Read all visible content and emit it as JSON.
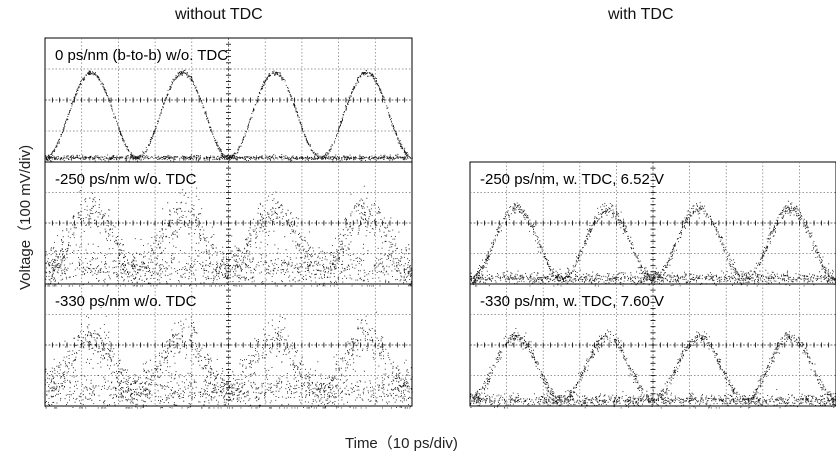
{
  "figure": {
    "column_titles": [
      "without TDC",
      "with TDC"
    ],
    "ylabel": "Voltage（100 mV/div)",
    "xlabel": "Time（10 ps/div)"
  },
  "chart_data": [
    {
      "type": "scatter",
      "title": "0 ps/nm (b-to-b)  w/o. TDC",
      "column": "without TDC",
      "xlabel": "Time (10 ps/div)",
      "ylabel": "Voltage (100 mV/div)",
      "divisions": {
        "x": 10,
        "y": 4
      },
      "signal": {
        "pulses": 4,
        "peak_div": 2.9,
        "base_div": 0.15,
        "noise": "low"
      }
    },
    {
      "type": "scatter",
      "title": "-250 ps/nm  w/o. TDC",
      "column": "without TDC",
      "xlabel": "Time (10 ps/div)",
      "ylabel": "Voltage (100 mV/div)",
      "divisions": {
        "x": 10,
        "y": 4
      },
      "signal": {
        "pulses": 4,
        "peak_div": 2.4,
        "base_div": 0.5,
        "noise": "high"
      }
    },
    {
      "type": "scatter",
      "title": "-330 ps/nm  w/o. TDC",
      "column": "without TDC",
      "xlabel": "Time (10 ps/div)",
      "ylabel": "Voltage (100 mV/div)",
      "divisions": {
        "x": 10,
        "y": 4
      },
      "signal": {
        "pulses": 4,
        "peak_div": 2.3,
        "base_div": 0.5,
        "noise": "high"
      }
    },
    {
      "type": "scatter",
      "title": "-250 ps/nm, w. TDC, 6.52 V",
      "column": "with TDC",
      "xlabel": "Time (10 ps/div)",
      "ylabel": "Voltage (100 mV/div)",
      "divisions": {
        "x": 10,
        "y": 4
      },
      "signal": {
        "pulses": 4,
        "peak_div": 2.5,
        "base_div": 0.2,
        "noise": "medium"
      }
    },
    {
      "type": "scatter",
      "title": "-330 ps/nm, w. TDC, 7.60 V",
      "column": "with TDC",
      "xlabel": "Time (10 ps/div)",
      "ylabel": "Voltage (100 mV/div)",
      "divisions": {
        "x": 10,
        "y": 4
      },
      "signal": {
        "pulses": 4,
        "peak_div": 2.3,
        "base_div": 0.2,
        "noise": "medium"
      }
    }
  ]
}
